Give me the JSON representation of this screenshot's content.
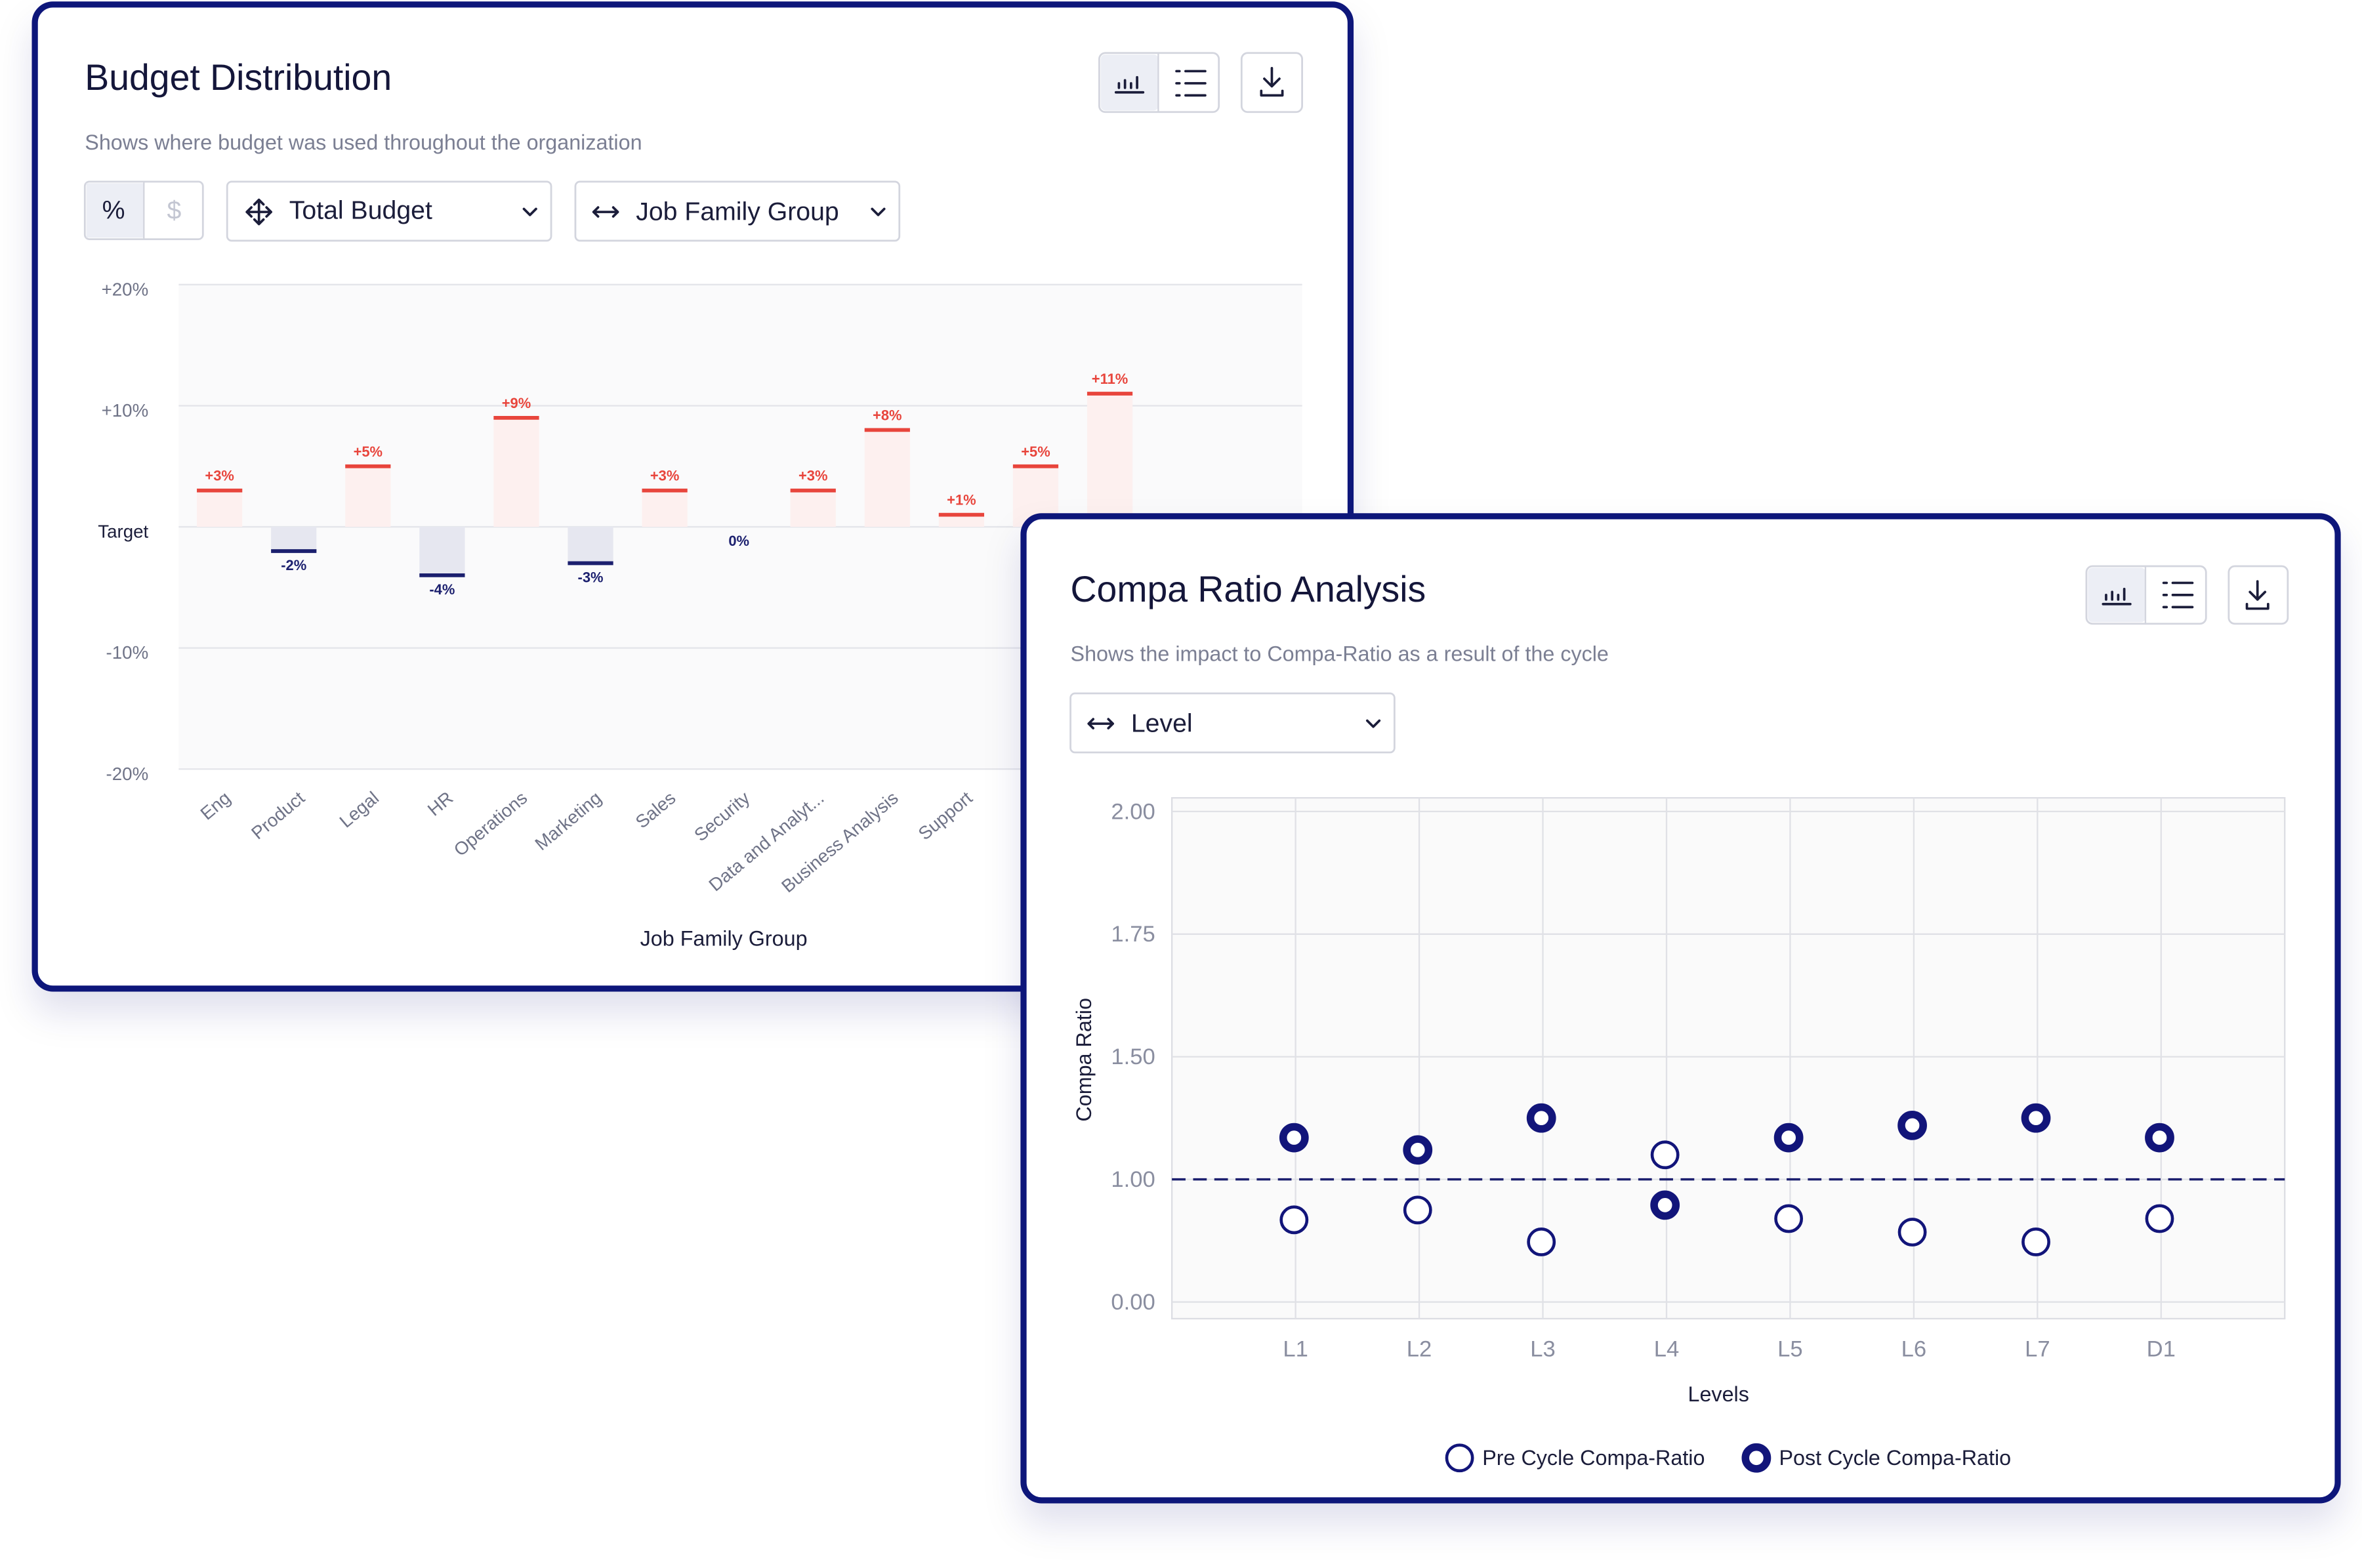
{
  "chart_data": [
    {
      "type": "bar",
      "title": "Budget Distribution",
      "subtitle": "Shows where budget was used throughout the organization",
      "controls": {
        "unit_options": [
          "%",
          "$"
        ],
        "measure": "Total Budget",
        "group_by": "Job Family Group"
      },
      "x_label": "Job Family Group",
      "categories": [
        "Eng",
        "Product",
        "Legal",
        "HR",
        "Operations",
        "Marketing",
        "Sales",
        "Security",
        "Data and Analyt...",
        "Business Analysis",
        "Support",
        null,
        null
      ],
      "values": [
        3,
        -2,
        5,
        -4,
        9,
        -3,
        3,
        0,
        3,
        8,
        1,
        5,
        11
      ],
      "value_labels": [
        "+3%",
        "-2%",
        "+5%",
        "-4%",
        "+9%",
        "-3%",
        "+3%",
        "0%",
        "+3%",
        "+8%",
        "+1%",
        "+5%",
        "+11%"
      ],
      "ylim": [
        -20,
        20
      ],
      "yticks": [
        {
          "value": -20,
          "label": "-20%"
        },
        {
          "value": -10,
          "label": "-10%"
        },
        {
          "value": 0,
          "label": "Target"
        },
        {
          "value": 10,
          "label": "+10%"
        },
        {
          "value": 20,
          "label": "+20%"
        }
      ],
      "positive_color": "#e8453c",
      "positive_fill": "#fdf0ef",
      "negative_color": "#1b1f6e",
      "negative_fill": "#e6e7f0",
      "grid": true
    },
    {
      "type": "scatter",
      "title": "Compa Ratio Analysis",
      "subtitle": "Shows the impact to Compa-Ratio as a result of the cycle",
      "controls": {
        "group_by": "Level"
      },
      "x_label": "Levels",
      "y_label": "Compa Ratio",
      "categories": [
        "L1",
        "L2",
        "L3",
        "L4",
        "L5",
        "L6",
        "L7",
        "D1"
      ],
      "series": [
        {
          "name": "Pre Cycle Compa-Ratio",
          "color": "#12157a",
          "marker": "open",
          "values": [
            0.67,
            0.75,
            0.49,
            1.1,
            0.68,
            0.57,
            0.49,
            0.68
          ]
        },
        {
          "name": "Post Cycle Compa-Ratio",
          "color": "#12157a",
          "marker": "ring",
          "values": [
            1.17,
            1.12,
            1.25,
            0.79,
            1.17,
            1.22,
            1.25,
            1.17
          ]
        }
      ],
      "ylim": [
        0,
        2
      ],
      "yticks": [
        {
          "value": 0,
          "label": "0.00"
        },
        {
          "value": 1,
          "label": "1.00"
        },
        {
          "value": 1.5,
          "label": "1.50"
        },
        {
          "value": 1.75,
          "label": "1.75"
        },
        {
          "value": 2,
          "label": "2.00"
        }
      ],
      "reference_line": 1,
      "grid": true
    }
  ]
}
